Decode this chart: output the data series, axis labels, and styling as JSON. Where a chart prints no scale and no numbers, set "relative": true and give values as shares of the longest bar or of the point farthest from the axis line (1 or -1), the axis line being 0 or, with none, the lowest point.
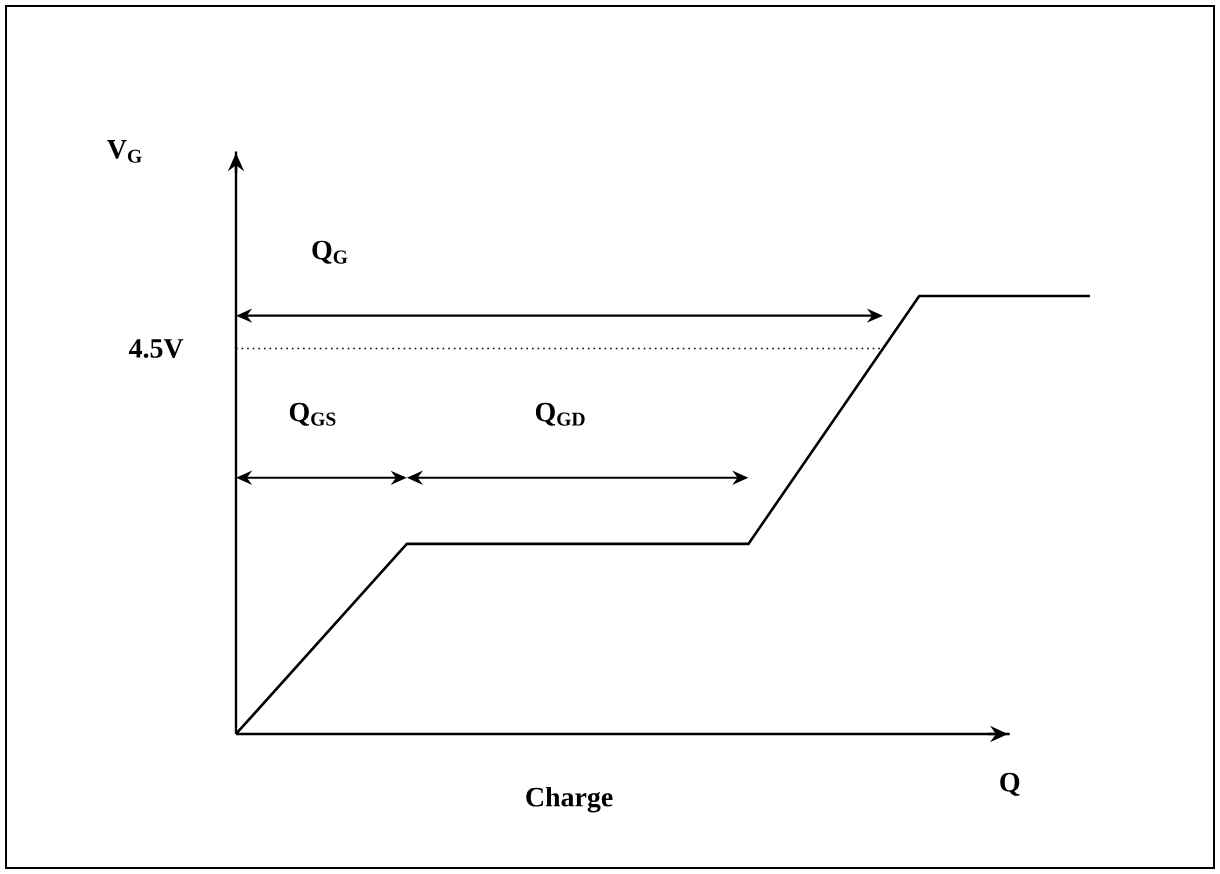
{
  "chart_data": {
    "type": "line",
    "relative": true,
    "xlabel": "Charge",
    "ylabel": "V$_{G}$",
    "categories": [
      null,
      null,
      null,
      null,
      null,
      null
    ],
    "values": [
      0,
      0.434,
      0.434,
      0.434,
      1,
      1
    ],
    "color": "#000000",
    "line_style": "solid",
    "ref_lines": [
      {
        "axis": "y",
        "value": 0.88,
        "label": "4.5V",
        "line_style": "dotted",
        "color": "#000000"
      }
    ],
    "annotations": [
      "Q$_{G}$",
      "Q$_{GS}$",
      "Q$_{GD}$",
      "Q"
    ]
  }
}
